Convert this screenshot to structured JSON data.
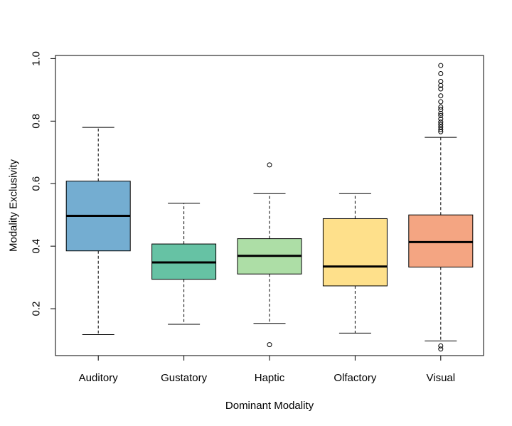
{
  "chart_data": {
    "type": "boxplot",
    "xlabel": "Dominant Modality",
    "ylabel": "Modality Exclusivity",
    "ylim": [
      0.05,
      1.01
    ],
    "yticks": [
      0.2,
      0.4,
      0.6,
      0.8,
      1.0
    ],
    "ytick_labels": [
      "0.2",
      "0.4",
      "0.6",
      "0.8",
      "1.0"
    ],
    "grid": false,
    "categories": [
      "Auditory",
      "Gustatory",
      "Haptic",
      "Olfactory",
      "Visual"
    ],
    "boxes": [
      {
        "name": "Auditory",
        "color": "#74ADD1",
        "whisker_low": 0.117,
        "q1": 0.385,
        "median": 0.497,
        "q3": 0.608,
        "whisker_high": 0.78,
        "outliers": []
      },
      {
        "name": "Gustatory",
        "color": "#66C2A4",
        "whisker_low": 0.15,
        "q1": 0.294,
        "median": 0.348,
        "q3": 0.407,
        "whisker_high": 0.537,
        "outliers": []
      },
      {
        "name": "Haptic",
        "color": "#ADDEA6",
        "whisker_low": 0.153,
        "q1": 0.311,
        "median": 0.369,
        "q3": 0.424,
        "whisker_high": 0.568,
        "outliers": [
          0.66,
          0.085
        ]
      },
      {
        "name": "Olfactory",
        "color": "#FEE08B",
        "whisker_low": 0.122,
        "q1": 0.273,
        "median": 0.335,
        "q3": 0.488,
        "whisker_high": 0.568,
        "outliers": []
      },
      {
        "name": "Visual",
        "color": "#F4A582",
        "whisker_low": 0.097,
        "q1": 0.333,
        "median": 0.413,
        "q3": 0.5,
        "whisker_high": 0.748,
        "outliers": [
          0.978,
          0.952,
          0.927,
          0.914,
          0.903,
          0.881,
          0.862,
          0.845,
          0.837,
          0.825,
          0.818,
          0.807,
          0.797,
          0.789,
          0.781,
          0.773,
          0.766,
          0.081,
          0.071
        ]
      }
    ]
  }
}
